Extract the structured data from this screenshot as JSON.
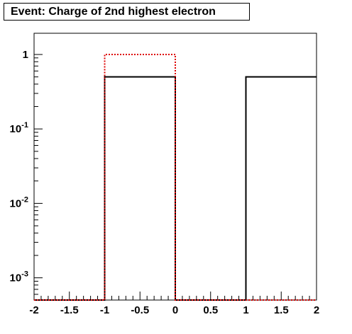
{
  "chart_data": {
    "type": "histogram",
    "title": "Event: Charge of 2nd highest electron",
    "xlabel": "",
    "ylabel": "",
    "xlim": [
      -2,
      2
    ],
    "ylim": [
      0.0005,
      2
    ],
    "y_scale": "log",
    "grid": false,
    "x_ticks": [
      "-2",
      "-1.5",
      "-1",
      "-0.5",
      "0",
      "0.5",
      "1",
      "1.5",
      "2"
    ],
    "y_ticks": [
      {
        "base": "1",
        "exp": ""
      },
      {
        "base": "10",
        "exp": "-1"
      },
      {
        "base": "10",
        "exp": "-2"
      },
      {
        "base": "10",
        "exp": "-3"
      }
    ],
    "bin_edges": [
      -2,
      -1,
      0,
      1,
      2
    ],
    "series": [
      {
        "values": [
          0,
          0.5,
          0,
          0.5
        ],
        "color": "#000000",
        "style": "solid"
      },
      {
        "values": [
          0,
          1.0,
          0,
          0
        ],
        "color": "#dd0000",
        "style": "dotted"
      }
    ]
  }
}
